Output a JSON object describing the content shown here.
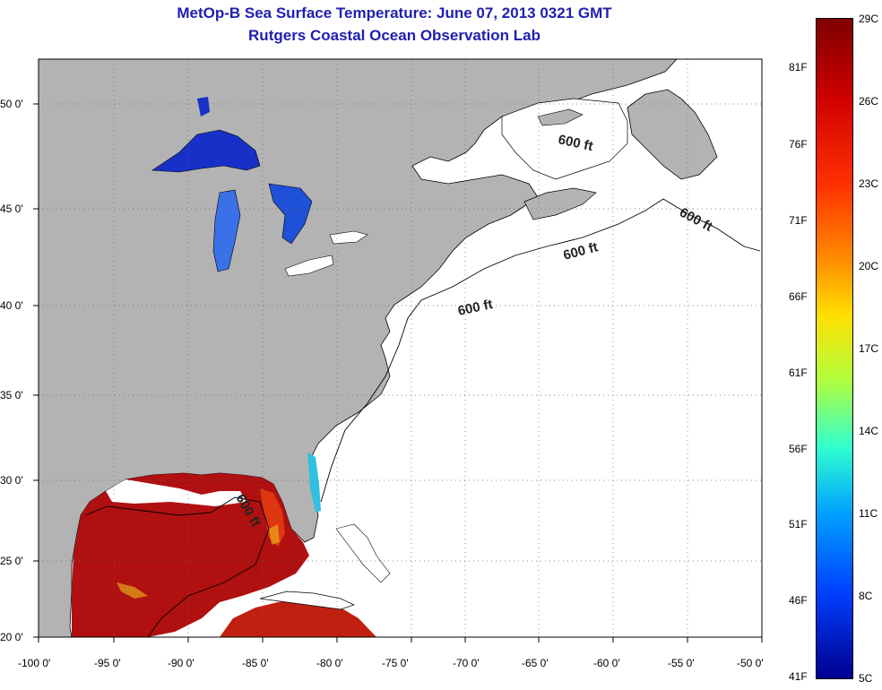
{
  "title": "MetOp-B Sea Surface Temperature:  June 07, 2013 0321 GMT",
  "subtitle": "Rutgers Coastal Ocean Observation Lab",
  "map": {
    "lon_ticks": [
      "-100 0'",
      "-95 0'",
      "-90 0'",
      "-85 0'",
      "-80 0'",
      "-75 0'",
      "-70 0'",
      "-65 0'",
      "-60 0'",
      "-55 0'",
      "-50 0'"
    ],
    "lat_ticks": [
      "50 0'",
      "45 0'",
      "40 0'",
      "35 0'",
      "30 0'",
      "25 0'",
      "20 0'"
    ],
    "contour_labels": [
      "600 ft",
      "600 ft",
      "600 ft",
      "600 ft",
      "600 ft"
    ],
    "colors": {
      "land": "#b3b3b3",
      "ocean": "#ffffff",
      "gulf": "#b01010",
      "lakes": "#1830c8"
    }
  },
  "colorbar": {
    "celsius": [
      "29C",
      "26C",
      "23C",
      "20C",
      "17C",
      "14C",
      "11C",
      "8C",
      "5C"
    ],
    "fahrenheit": [
      "81F",
      "76F",
      "71F",
      "66F",
      "61F",
      "56F",
      "51F",
      "46F",
      "41F"
    ]
  }
}
